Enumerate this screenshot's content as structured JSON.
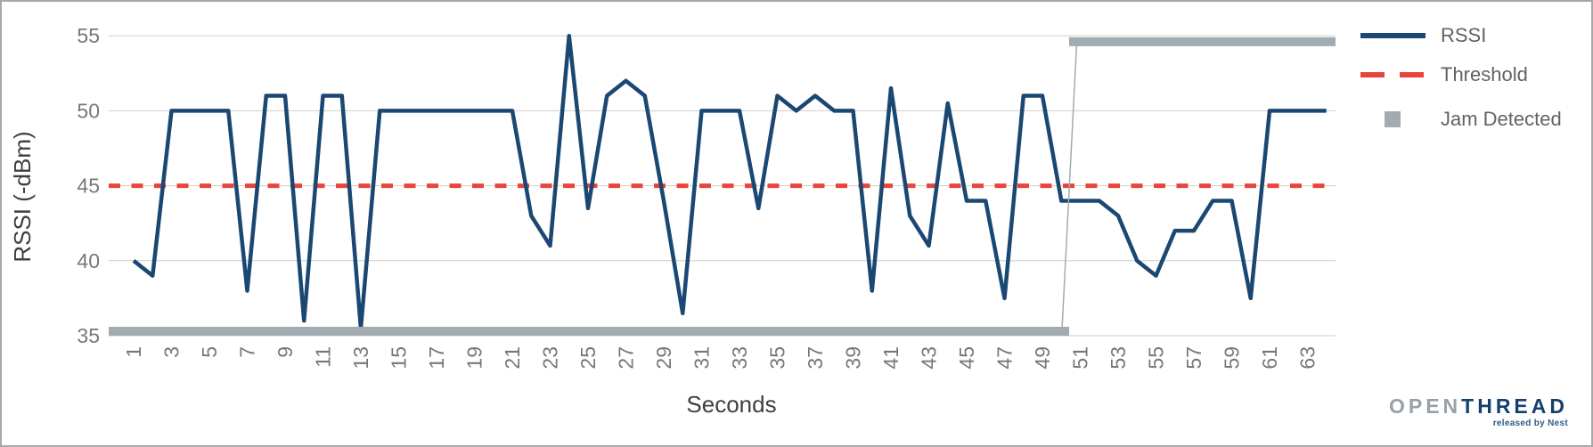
{
  "chart_data": {
    "type": "line",
    "title": "",
    "xlabel": "Seconds",
    "ylabel": "RSSI (-dBm)",
    "ylim": [
      35,
      55
    ],
    "yticks": [
      35,
      40,
      45,
      50,
      55
    ],
    "xticks": [
      1,
      3,
      5,
      7,
      9,
      11,
      13,
      15,
      17,
      19,
      21,
      23,
      25,
      27,
      29,
      31,
      33,
      35,
      37,
      39,
      41,
      43,
      45,
      47,
      49,
      51,
      53,
      55,
      57,
      59,
      61,
      63
    ],
    "grid": "horizontal",
    "legend_position": "right-top",
    "x": [
      1,
      2,
      3,
      4,
      5,
      6,
      7,
      8,
      9,
      10,
      11,
      12,
      13,
      14,
      15,
      16,
      17,
      18,
      19,
      20,
      21,
      22,
      23,
      24,
      25,
      26,
      27,
      28,
      29,
      30,
      31,
      32,
      33,
      34,
      35,
      36,
      37,
      38,
      39,
      40,
      41,
      42,
      43,
      44,
      45,
      46,
      47,
      48,
      49,
      50,
      51,
      52,
      53,
      54,
      55,
      56,
      57,
      58,
      59,
      60,
      61,
      62,
      63,
      64
    ],
    "rssi": {
      "name": "RSSI",
      "color": "#1b4872",
      "style": "solid",
      "values": [
        40,
        39,
        50,
        50,
        50,
        50,
        38,
        51,
        51,
        36,
        51,
        51,
        35.5,
        50,
        50,
        50,
        50,
        50,
        50,
        50,
        50,
        43,
        41,
        55,
        43.5,
        51,
        52,
        51,
        44,
        36.5,
        50,
        50,
        50,
        43.5,
        51,
        50,
        51,
        50,
        50,
        38,
        51.5,
        43,
        41,
        50.5,
        44,
        44,
        37.5,
        51,
        51,
        44,
        44,
        44,
        43,
        40,
        39,
        42,
        42,
        44,
        44,
        37.5,
        50,
        50,
        50,
        50
      ]
    },
    "threshold": {
      "name": "Threshold",
      "color": "#e8453a",
      "style": "dashed",
      "value": 45
    },
    "jam_detected": {
      "name": "Jam Detected",
      "color": "#a2abb1",
      "no_jam_seconds": [
        1,
        50
      ],
      "jam_seconds": [
        51,
        64
      ],
      "low_level_dbm": 35.3,
      "high_level_dbm": 54.6
    },
    "colors": {
      "grid": "#cecece",
      "tick_label": "#75787b",
      "axis_title": "#3c4043"
    }
  },
  "legend": {
    "items": [
      {
        "label": "RSSI",
        "swatch": "line",
        "color": "#1b4872"
      },
      {
        "label": "Threshold",
        "swatch": "dashes",
        "color": "#e8453a"
      },
      {
        "label": "Jam Detected",
        "swatch": "square",
        "color": "#a2abb1"
      }
    ]
  },
  "branding": {
    "logo_open": "OPEN",
    "logo_thread": "THREAD",
    "tagline": "released by Nest",
    "logo_open_color": "#9aa0a6",
    "logo_thread_color": "#15406d"
  }
}
